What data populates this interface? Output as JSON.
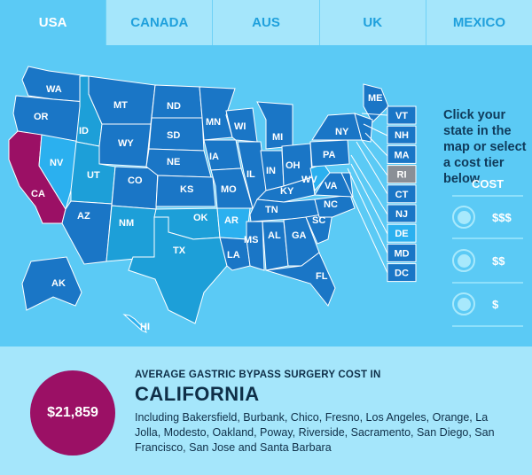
{
  "tabs": [
    {
      "label": "USA",
      "active": true
    },
    {
      "label": "CANADA",
      "active": false
    },
    {
      "label": "AUS",
      "active": false
    },
    {
      "label": "UK",
      "active": false
    },
    {
      "label": "MEXICO",
      "active": false
    }
  ],
  "side": {
    "prompt": "Click your state in the map or select a cost tier below"
  },
  "cost": {
    "heading": "COST",
    "tiers": [
      "$$$",
      "$$",
      "$"
    ]
  },
  "states": {
    "WA": "WA",
    "OR": "OR",
    "CA": "CA",
    "NV": "NV",
    "ID": "ID",
    "MT": "MT",
    "WY": "WY",
    "UT": "UT",
    "AZ": "AZ",
    "CO": "CO",
    "NM": "NM",
    "ND": "ND",
    "SD": "SD",
    "NE": "NE",
    "KS": "KS",
    "OK": "OK",
    "TX": "TX",
    "MN": "MN",
    "IA": "IA",
    "MO": "MO",
    "AR": "AR",
    "LA": "LA",
    "WI": "WI",
    "IL": "IL",
    "MI": "MI",
    "IN": "IN",
    "OH": "OH",
    "KY": "KY",
    "TN": "TN",
    "MS": "MS",
    "AL": "AL",
    "GA": "GA",
    "FL": "FL",
    "SC": "SC",
    "NC": "NC",
    "VA": "VA",
    "WV": "WV",
    "PA": "PA",
    "NY": "NY",
    "ME": "ME",
    "AK": "AK",
    "HI": "HI"
  },
  "small_states": [
    "VT",
    "NH",
    "MA",
    "RI",
    "CT",
    "NJ",
    "DE",
    "MD",
    "DC"
  ],
  "colors": {
    "selected": "#9b1065",
    "tier_high": "#1a76c6",
    "tier_mid": "#1d9fd8",
    "tier_low": "#2bb0ef",
    "inactive": "#8a8f96"
  },
  "info": {
    "heading": "AVERAGE GASTRIC BYPASS SURGERY COST IN",
    "state": "CALIFORNIA",
    "price": "$21,859",
    "cities": "Including Bakersfield, Burbank, Chico, Fresno, Los Angeles, Orange, La Jolla, Modesto, Oakland, Poway, Riverside, Sacramento, San Diego, San Francisco, San Jose and Santa Barbara"
  }
}
